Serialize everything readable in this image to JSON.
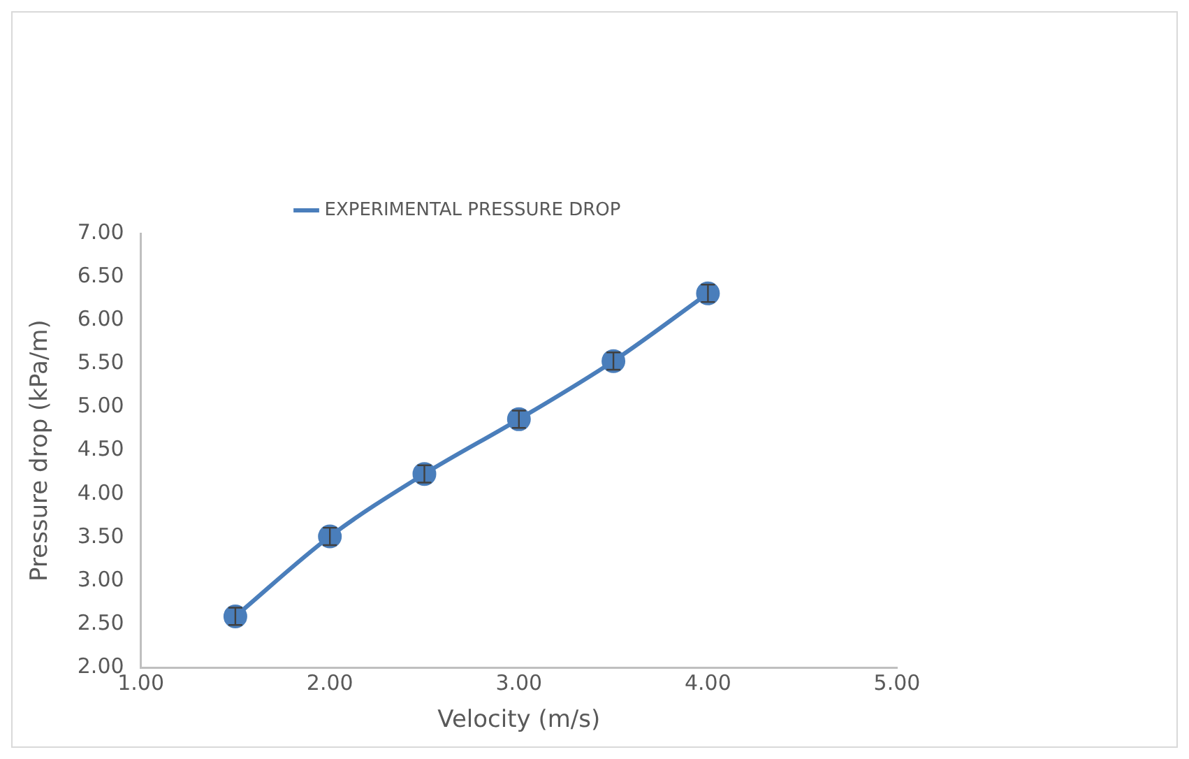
{
  "chart_data": {
    "type": "line",
    "xlabel": "Velocity (m/s)",
    "ylabel": "Pressure drop (kPa/m)",
    "x": [
      1.5,
      2,
      2.5,
      3,
      3.5,
      4
    ],
    "series": [
      {
        "name": "EXPERIMENTAL PRESSURE DROP",
        "color": "#4a7ebb",
        "values": [
          2.59,
          3.51,
          4.23,
          4.86,
          5.53,
          6.31
        ],
        "errors": [
          0.1,
          0.1,
          0.1,
          0.1,
          0.1,
          0.1
        ]
      }
    ],
    "xlim": [
      1,
      5
    ],
    "xticks": [
      {
        "value": 1,
        "label": "1.00"
      },
      {
        "value": 2,
        "label": "2.00"
      },
      {
        "value": 3,
        "label": "3.00"
      },
      {
        "value": 4,
        "label": "4.00"
      },
      {
        "value": 5,
        "label": "5.00"
      }
    ],
    "ylim": [
      2,
      7
    ],
    "yticks": [
      {
        "value": 2,
        "label": "2.00"
      },
      {
        "value": 2.5,
        "label": "2.50"
      },
      {
        "value": 3,
        "label": "3.00"
      },
      {
        "value": 3.5,
        "label": "3.50"
      },
      {
        "value": 4,
        "label": "4.00"
      },
      {
        "value": 4.5,
        "label": "4.50"
      },
      {
        "value": 5,
        "label": "5.00"
      },
      {
        "value": 5.5,
        "label": "5.50"
      },
      {
        "value": 6,
        "label": "6.00"
      },
      {
        "value": 6.5,
        "label": "6.50"
      },
      {
        "value": 7,
        "label": "7.00"
      }
    ],
    "legend": "top",
    "marker": "circle",
    "line_style": "solid",
    "grid": false
  }
}
